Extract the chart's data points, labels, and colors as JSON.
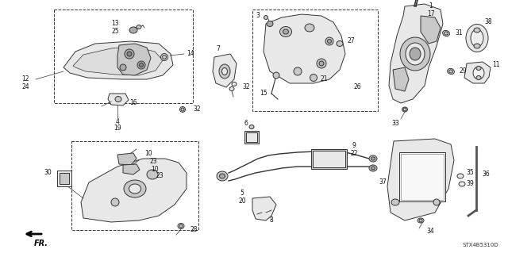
{
  "bg_color": "#ffffff",
  "diagram_code": "STX4B5310D",
  "fr_label": "FR.",
  "line_color": "#333333",
  "fill_light": "#e8e8e8",
  "fill_mid": "#c8c8c8",
  "fill_dark": "#aaaaaa",
  "lw": 0.7,
  "label_fs": 5.5
}
